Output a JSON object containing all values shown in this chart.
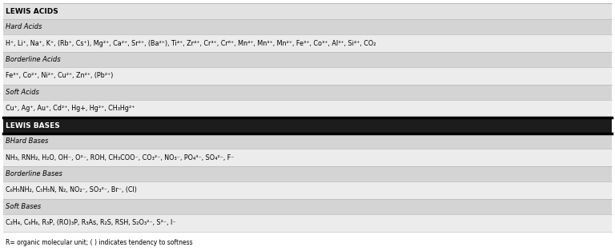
{
  "bg_color": "#ffffff",
  "rows": [
    {
      "label": "LEWIS ACIDS",
      "type": "main_header_light"
    },
    {
      "label": "Hard Acids",
      "type": "sub_header"
    },
    {
      "label": "H⁺, Li⁺, Na⁺, K⁺, (Rb⁺, Cs⁺), Mg²⁺, Ca²⁺, Sr²⁺, (Ba²⁺), Ti⁴⁺, Zr⁴⁺, Cr³⁺, Cr⁶⁺, Mn⁴⁺, Mn³⁺, Mn²⁺, Fe³⁺, Co³⁺, Al³⁺, Si⁴⁺, CO₂",
      "type": "content"
    },
    {
      "label": "Borderline Acids",
      "type": "sub_header"
    },
    {
      "label": "Fe³⁺, Co²⁺, Ni²⁺, Cu²⁺, Zn²⁺, (Pb²⁺)",
      "type": "content"
    },
    {
      "label": "Soft Acids",
      "type": "sub_header"
    },
    {
      "label": "Cu⁺, Ag⁺, Au⁺, Cd²⁺, Hg+, Hg²⁺, CH₃Hg²⁺",
      "type": "content"
    },
    {
      "label": "LEWIS BASES",
      "type": "main_header_dark"
    },
    {
      "label": "BHard Bases",
      "type": "sub_header"
    },
    {
      "label": "NH₃, RNH₂, H₂O, OH⁻, O²⁻, ROH, CH₃COO⁻, CO₃²⁻, NO₃⁻, PO₄³⁻, SO₄²⁻, F⁻",
      "type": "content"
    },
    {
      "label": "Borderline Bases",
      "type": "sub_header"
    },
    {
      "label": "C₆H₅NH₂, C₅H₅N, N₂, NO₂⁻, SO₃²⁻, Br⁻, (Cl)",
      "type": "content"
    },
    {
      "label": "Soft Bases",
      "type": "sub_header"
    },
    {
      "label": "C₂H₄, C₆H₆, R₃P, (RO)₃P, R₃As, R₂S, RSH, S₂O₃²⁻, S²⁻, I⁻",
      "type": "content"
    }
  ],
  "footnote": "R= organic molecular unit; ( ) indicates tendency to softness",
  "color_main_header_light": "#e2e2e2",
  "color_main_header_dark": "#1c1c1c",
  "color_sub_header": "#d4d4d4",
  "color_content": "#ececec",
  "text_dark": "#000000",
  "text_light": "#ffffff",
  "lewis_bases_idx": 7
}
